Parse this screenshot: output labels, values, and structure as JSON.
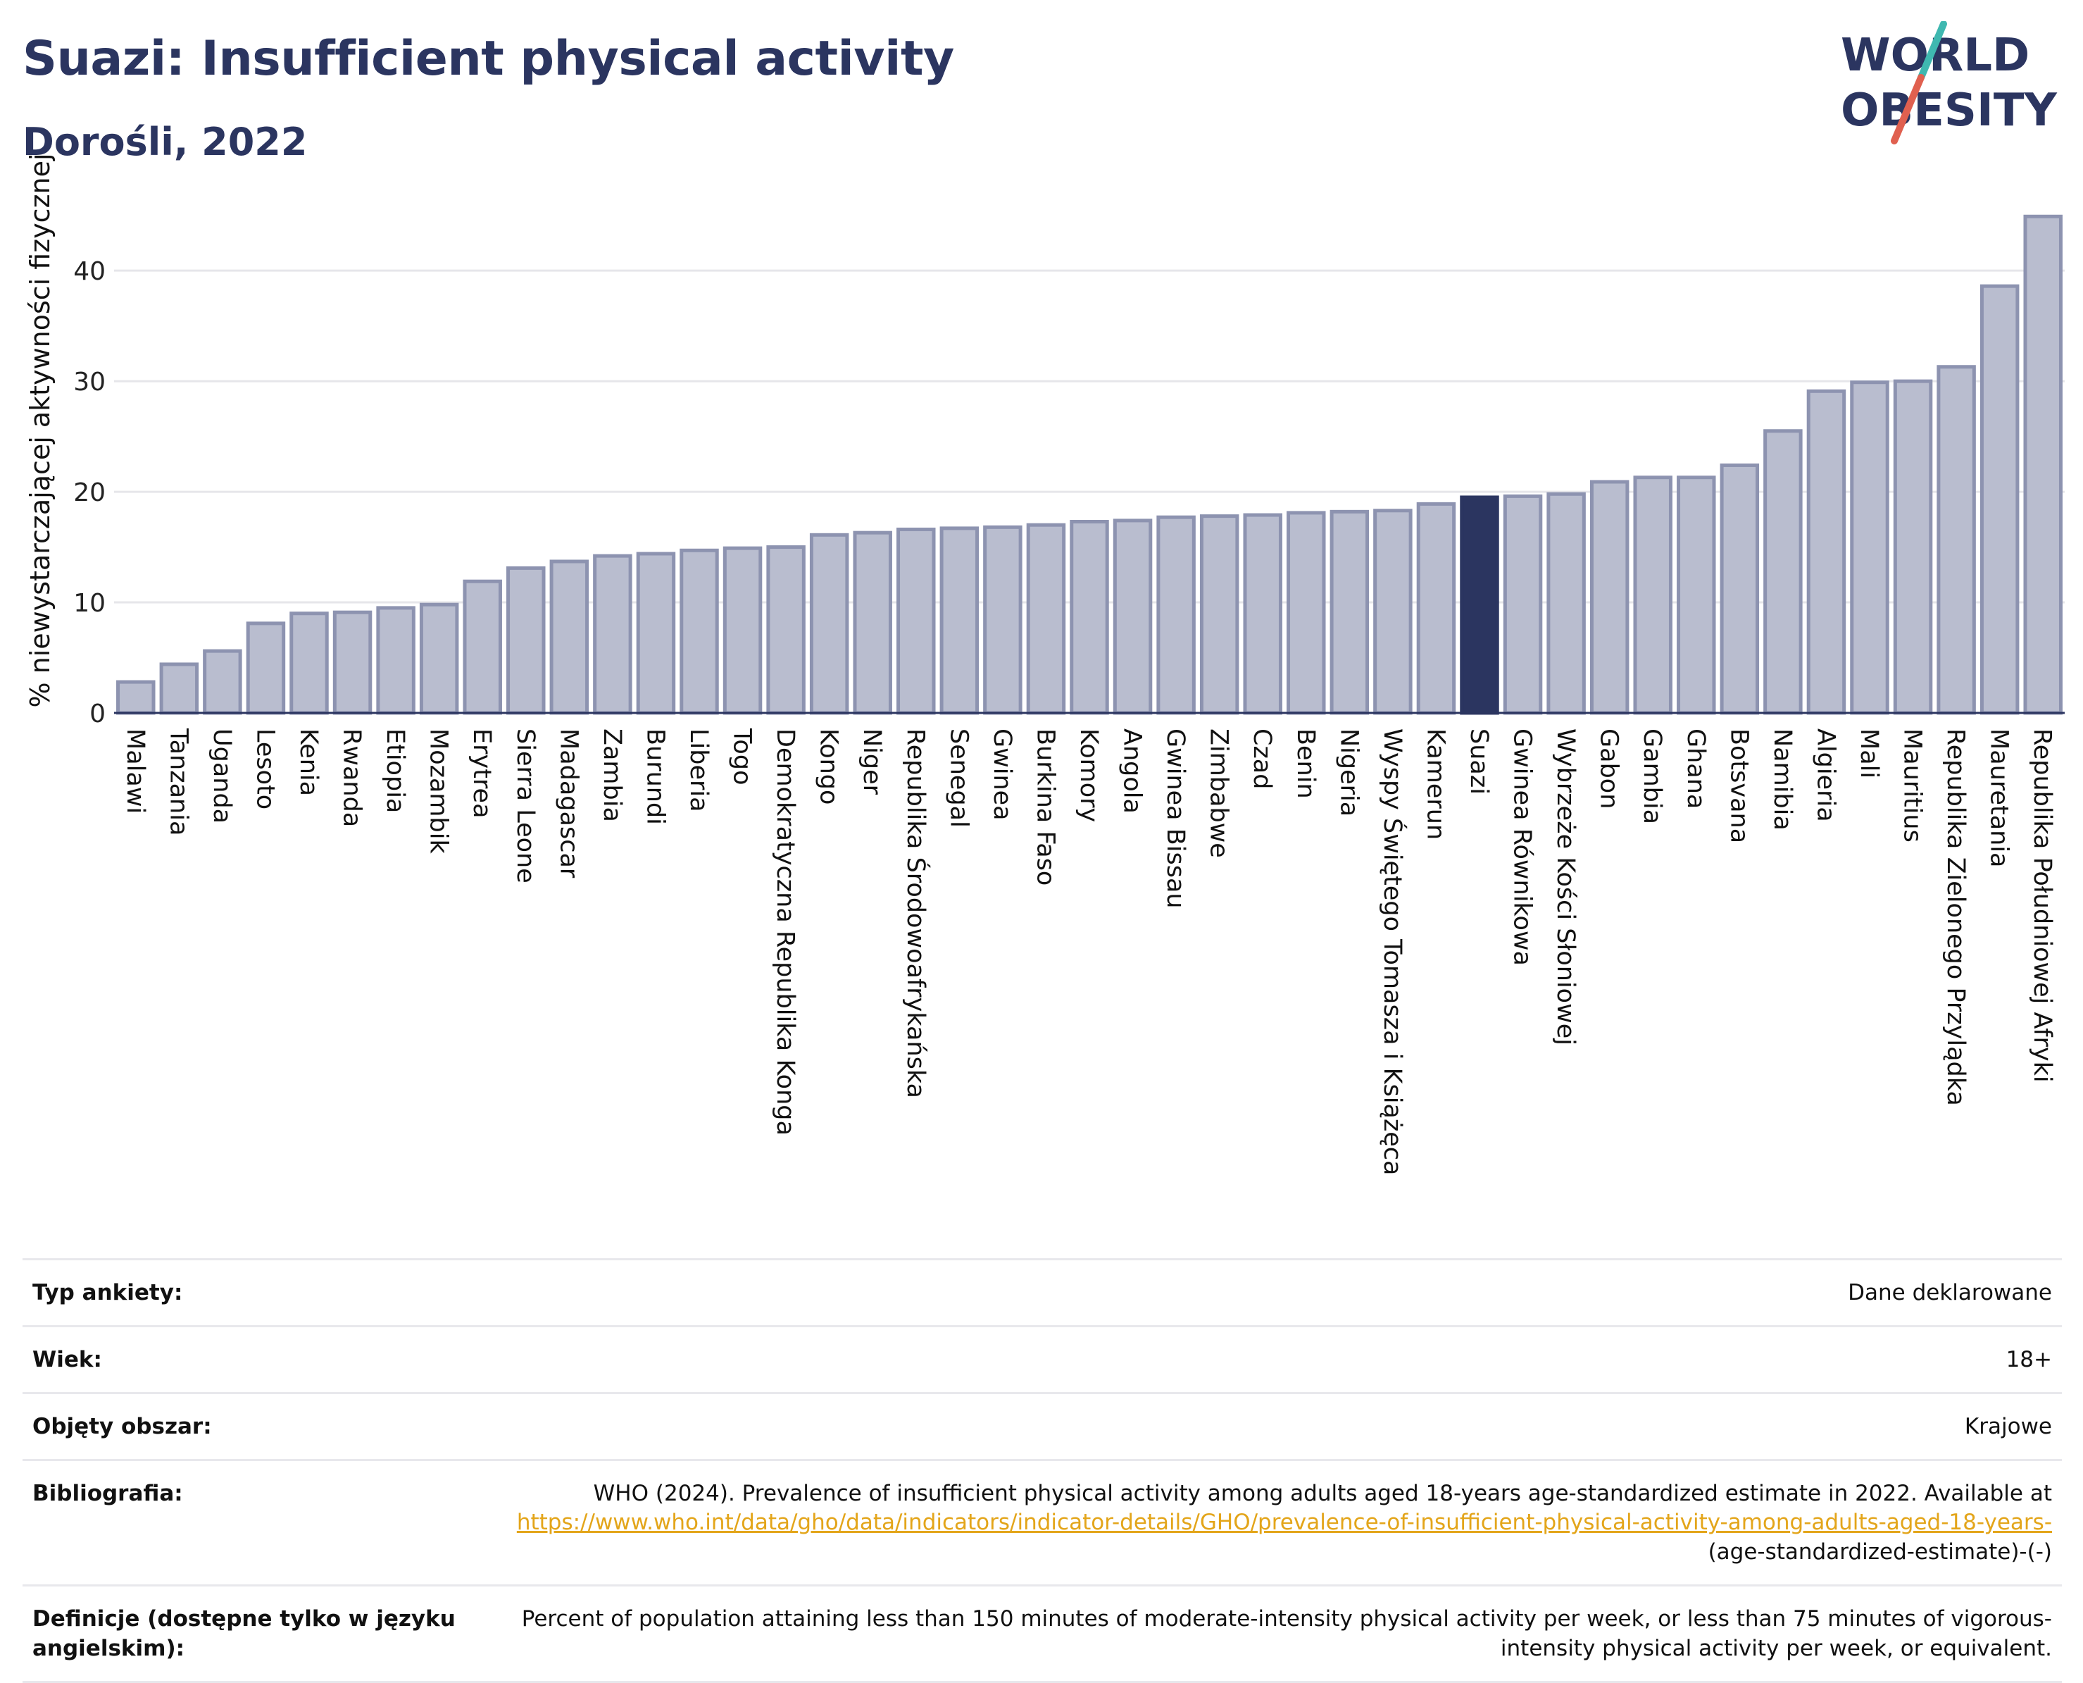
{
  "header": {
    "title": "Suazi: Insufficient physical activity",
    "subtitle": "Dorośli, 2022"
  },
  "logo": {
    "line1": "WORLD",
    "line2": "OBESITY"
  },
  "colors": {
    "bar": "#b9bdcf",
    "bar_stroke": "#8d93b0",
    "highlight": "#2b3560",
    "text_dark": "#2b3560",
    "link": "#e3a51a"
  },
  "chart_data": {
    "type": "bar",
    "title": "Suazi: Insufficient physical activity",
    "subtitle": "Dorośli, 2022",
    "xlabel": "",
    "ylabel": "% niewystarczającej aktywności fizycznej",
    "ylim": [
      0,
      46
    ],
    "yticks": [
      0,
      10,
      20,
      30,
      40
    ],
    "grid": true,
    "highlight": "Suazi",
    "categories": [
      "Malawi",
      "Tanzania",
      "Uganda",
      "Lesoto",
      "Kenia",
      "Rwanda",
      "Etiopia",
      "Mozambik",
      "Erytrea",
      "Sierra Leone",
      "Madagascar",
      "Zambia",
      "Burundi",
      "Liberia",
      "Togo",
      "Demokratyczna Republika Konga",
      "Kongo",
      "Niger",
      "Republika Środowoafrykańska",
      "Senegal",
      "Gwinea",
      "Burkina Faso",
      "Komory",
      "Angola",
      "Gwinea Bissau",
      "Zimbabwe",
      "Czad",
      "Benin",
      "Nigeria",
      "Wyspy Świętego Tomasza i Książęca",
      "Kamerun",
      "Suazi",
      "Gwinea Równikowa",
      "Wybrzeże Kości Słoniowej",
      "Gabon",
      "Gambia",
      "Ghana",
      "Botsvana",
      "Namibia",
      "Algieria",
      "Mali",
      "Mauritius",
      "Republika Zielonego Przylądka",
      "Mauretania",
      "Republika Południowej Afryki"
    ],
    "values": [
      2.8,
      4.4,
      5.6,
      8.1,
      9.0,
      9.1,
      9.5,
      9.8,
      11.9,
      13.1,
      13.7,
      14.2,
      14.4,
      14.7,
      14.9,
      15.0,
      16.1,
      16.3,
      16.6,
      16.7,
      16.8,
      17.0,
      17.3,
      17.4,
      17.7,
      17.8,
      17.9,
      18.1,
      18.2,
      18.3,
      18.9,
      19.5,
      19.6,
      19.8,
      20.9,
      21.3,
      21.3,
      22.4,
      25.5,
      29.1,
      29.9,
      30.0,
      31.3,
      38.6,
      44.9
    ]
  },
  "meta": [
    {
      "key": "Typ ankiety:",
      "value": "Dane deklarowane"
    },
    {
      "key": "Wiek:",
      "value": "18+"
    },
    {
      "key": "Objęty obszar:",
      "value": "Krajowe"
    },
    {
      "key": "Bibliografia:",
      "text_before": "WHO (2024). Prevalence of insufficient physical activity among adults aged 18-years age-standardized estimate in 2022. Available at",
      "link": "https://www.who.int/data/gho/data/indicators/indicator-details/GHO/prevalence-of-insufficient-physical-activity-among-adults-aged-18-years-",
      "text_after": "(age-standardized-estimate)-(-)"
    },
    {
      "key": "Definicje (dostępne tylko w języku angielskim):",
      "value": "Percent of population attaining less than 150 minutes of moderate-intensity physical activity per week, or less than 75 minutes of vigorous-intensity physical activity per week, or equivalent."
    }
  ]
}
